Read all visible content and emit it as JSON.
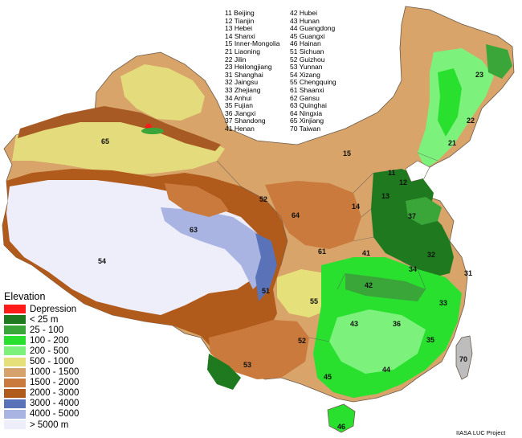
{
  "province_codes": {
    "column_1": [
      "11 Beijing",
      "12 Tianjin",
      "13 Hebei",
      "14 Shanxi",
      "15 Inner-Mongolia",
      "21 Liaoning",
      "22 Jilin",
      "23 Heilongjiang",
      "31 Shanghai",
      "32 Jaingsu",
      "33 Zhejiang",
      "34 Anhui",
      "35 Fujian",
      "36 Jiangxi",
      "37 Shandong",
      "41 Henan"
    ],
    "column_2": [
      "42 Hubei",
      "43 Hunan",
      "44 Guangdong",
      "45 Guangxi",
      "46 Hainan",
      "51 Sichuan",
      "52 Guizhou",
      "53 Yunnan",
      "54 Xizang",
      "55 Chengquing",
      "61 Shaanxi",
      "62 Gansu",
      "63 Quinghai",
      "64 Ningxia",
      "65 Xinjiang",
      "70 Taiwan"
    ]
  },
  "map_labels": [
    "65",
    "15",
    "23",
    "22",
    "21",
    "11",
    "12",
    "13",
    "37",
    "52",
    "64",
    "14",
    "63",
    "54",
    "61",
    "41",
    "32",
    "34",
    "31",
    "42",
    "51",
    "55",
    "33",
    "43",
    "36",
    "52",
    "35",
    "70",
    "53",
    "44",
    "45",
    "46"
  ],
  "legend": {
    "title": "Elevation",
    "entries": [
      {
        "label": "Depression",
        "color": "#ff1a1a"
      },
      {
        "label": "< 25 m",
        "color": "#1f7a1f"
      },
      {
        "label": "25 - 100",
        "color": "#3aa63a"
      },
      {
        "label": "100 - 200",
        "color": "#29e02f"
      },
      {
        "label": "200 - 500",
        "color": "#7cf27c"
      },
      {
        "label": "500 - 1000",
        "color": "#e6e07a"
      },
      {
        "label": "1000 - 1500",
        "color": "#d6a26b"
      },
      {
        "label": "1500 - 2000",
        "color": "#c97a3c"
      },
      {
        "label": "2000 - 3000",
        "color": "#b05a1c"
      },
      {
        "label": "3000 - 4000",
        "color": "#5a73b8"
      },
      {
        "label": "4000 - 5000",
        "color": "#a9b4e3"
      },
      {
        "label": "> 5000 m",
        "color": "#eeeefa"
      }
    ]
  },
  "credit": "IIASA LUC Project"
}
